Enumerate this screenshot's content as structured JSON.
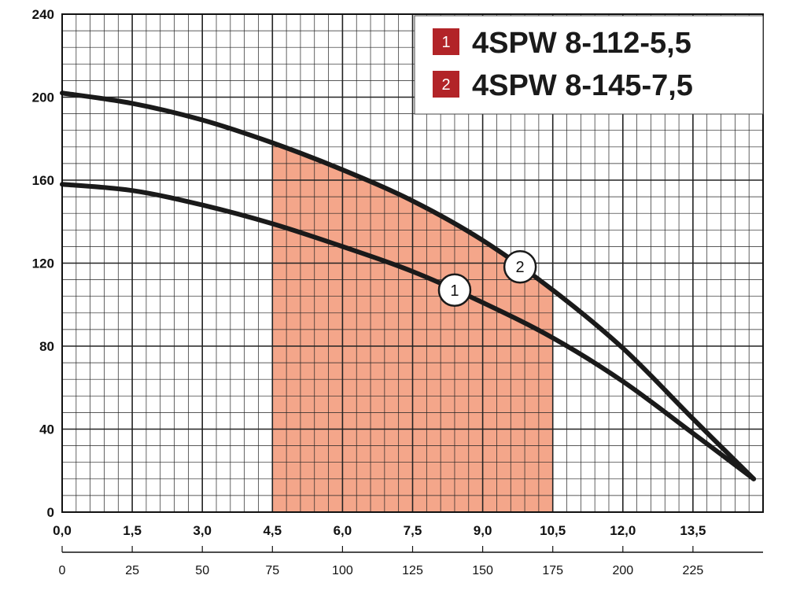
{
  "chart_data": {
    "type": "line",
    "title": "",
    "xlabel": "",
    "ylabel": "",
    "x_axis_primary": {
      "ticks": [
        "0,0",
        "1,5",
        "3,0",
        "4,5",
        "6,0",
        "7,5",
        "9,0",
        "10,5",
        "12,0",
        "13,5"
      ],
      "range": [
        0,
        15
      ]
    },
    "x_axis_secondary": {
      "ticks": [
        "0",
        "25",
        "50",
        "75",
        "100",
        "125",
        "150",
        "175",
        "200",
        "225"
      ],
      "range": [
        0,
        250
      ]
    },
    "y_axis": {
      "ticks": [
        "0",
        "40",
        "80",
        "120",
        "160",
        "200",
        "240"
      ],
      "range": [
        0,
        240
      ]
    },
    "grid": true,
    "legend_position": "top-right",
    "working_range": {
      "x_from": 4.5,
      "x_to": 10.5,
      "color": "#f4a68a"
    },
    "series": [
      {
        "name": "4SPW 8-112-5,5",
        "marker": "1",
        "color": "#1a1a1a",
        "x": [
          0,
          1.5,
          3.0,
          4.5,
          6.0,
          7.5,
          9.0,
          10.5,
          12.0,
          13.5,
          14.8
        ],
        "y": [
          158,
          155,
          148,
          139,
          128,
          116,
          101,
          84,
          63,
          38,
          16
        ],
        "marker_at_x": 8.4
      },
      {
        "name": "4SPW 8-145-7,5",
        "marker": "2",
        "color": "#1a1a1a",
        "x": [
          0,
          1.5,
          3.0,
          4.5,
          6.0,
          7.5,
          9.0,
          10.5,
          12.0,
          13.5,
          14.8
        ],
        "y": [
          202,
          197,
          189,
          178,
          165,
          150,
          131,
          107,
          79,
          45,
          16
        ],
        "marker_at_x": 9.8
      }
    ],
    "legend_box_color": "#b22428"
  }
}
